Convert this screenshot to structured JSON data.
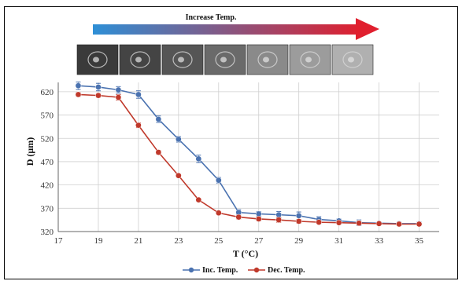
{
  "banner": {
    "label": "Increase Temp."
  },
  "thumbnails": [
    {
      "tone": "#3a3a3a"
    },
    {
      "tone": "#444444"
    },
    {
      "tone": "#555555"
    },
    {
      "tone": "#6a6a6a"
    },
    {
      "tone": "#8a8a8a"
    },
    {
      "tone": "#9c9c9c"
    },
    {
      "tone": "#b0b0b0"
    }
  ],
  "colors": {
    "inc": "#4a72b0",
    "dec": "#c0392b",
    "grid": "#cfcfcf",
    "arrow_start": "#2e8fd6",
    "arrow_end": "#e01f2e"
  },
  "chart_data": {
    "type": "line",
    "xlabel": "T (°C)",
    "ylabel": "D (μm)",
    "xlim": [
      17,
      36
    ],
    "ylim": [
      320,
      640
    ],
    "xticks": [
      17,
      19,
      21,
      23,
      25,
      27,
      29,
      31,
      33,
      35
    ],
    "yticks": [
      320,
      370,
      420,
      470,
      520,
      570,
      620
    ],
    "grid": true,
    "legend_position": "bottom",
    "series": [
      {
        "name": "Inc. Temp.",
        "x": [
          18,
          19,
          20,
          21,
          22,
          23,
          24,
          25,
          26,
          27,
          28,
          29,
          30,
          31,
          32,
          33,
          34,
          35
        ],
        "y": [
          633,
          630,
          624,
          614,
          561,
          518,
          476,
          430,
          361,
          358,
          356,
          354,
          346,
          343,
          339,
          338,
          337,
          337
        ],
        "err": [
          8,
          8,
          7,
          8,
          7,
          6,
          8,
          6,
          6,
          5,
          7,
          8,
          6,
          4,
          6,
          3,
          4,
          4
        ]
      },
      {
        "name": "Dec. Temp.",
        "x": [
          18,
          19,
          20,
          21,
          22,
          23,
          24,
          25,
          26,
          27,
          28,
          29,
          30,
          31,
          32,
          33,
          34,
          35
        ],
        "y": [
          614,
          612,
          608,
          548,
          490,
          440,
          388,
          360,
          351,
          347,
          345,
          342,
          340,
          339,
          338,
          337,
          336,
          336
        ],
        "err": [
          4,
          4,
          6,
          5,
          4,
          3,
          3,
          3,
          4,
          4,
          5,
          4,
          3,
          3,
          3,
          3,
          3,
          3
        ]
      }
    ]
  }
}
